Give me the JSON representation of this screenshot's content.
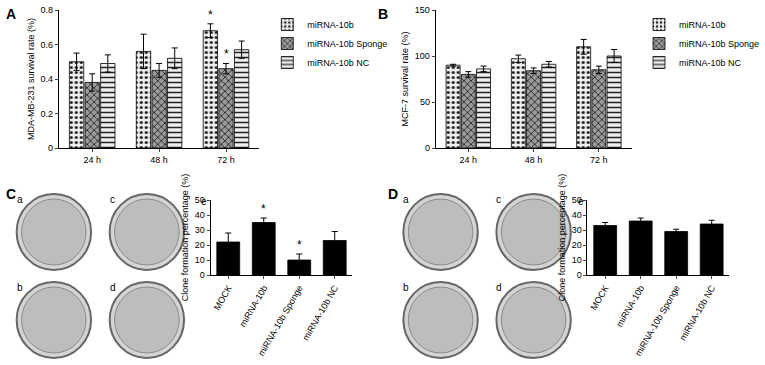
{
  "chart_data": [
    {
      "type": "bar",
      "title": "A",
      "ylabel": "MDA-MB-231 survival rate (%)",
      "categories": [
        "24 h",
        "48 h",
        "72 h"
      ],
      "series": [
        {
          "name": "miRNA-10b",
          "color": "#eeeeee",
          "marker": "dots",
          "values": [
            0.5,
            0.56,
            0.68
          ],
          "errors": [
            0.05,
            0.1,
            0.04
          ]
        },
        {
          "name": "miRNA-10b Sponge",
          "color": "#9a9a9a",
          "marker": "crosshatch",
          "values": [
            0.38,
            0.45,
            0.46
          ],
          "errors": [
            0.05,
            0.04,
            0.03
          ]
        },
        {
          "name": "miRNA-10b NC",
          "color": "#eeeeee",
          "marker": "hlines",
          "values": [
            0.49,
            0.52,
            0.57
          ],
          "errors": [
            0.05,
            0.06,
            0.05
          ]
        }
      ],
      "ylim": [
        0,
        0.8
      ],
      "yticks": [
        0,
        0.2,
        0.4,
        0.6,
        0.8
      ],
      "grid": false,
      "legend": "right",
      "annotations": [
        {
          "text": "*",
          "category": "72 h",
          "series": "miRNA-10b"
        },
        {
          "text": "*",
          "category": "72 h",
          "series": "miRNA-10b Sponge"
        }
      ]
    },
    {
      "type": "bar",
      "title": "B",
      "ylabel": "MCF-7 survival rate (%)",
      "categories": [
        "24 h",
        "48 h",
        "72 h"
      ],
      "series": [
        {
          "name": "miRNA-10b",
          "color": "#eeeeee",
          "marker": "dots",
          "values": [
            90,
            97,
            110
          ],
          "errors": [
            1,
            4,
            8
          ]
        },
        {
          "name": "miRNA-10b Sponge",
          "color": "#9a9a9a",
          "marker": "crosshatch",
          "values": [
            80,
            84,
            85
          ],
          "errors": [
            3,
            3,
            4
          ]
        },
        {
          "name": "miRNA-10b NC",
          "color": "#eeeeee",
          "marker": "hlines",
          "values": [
            86,
            91,
            100
          ],
          "errors": [
            3,
            3,
            7
          ]
        }
      ],
      "ylim": [
        0,
        150
      ],
      "yticks": [
        0,
        50,
        100,
        150
      ],
      "grid": false,
      "legend": "right"
    },
    {
      "type": "bar",
      "title": "C",
      "ylabel": "Clone formation percentage (%)",
      "categories": [
        "MOCK",
        "miRNA-10b",
        "miRNA-10b Sponge",
        "miRNA-10b NC"
      ],
      "values": [
        22,
        35,
        10,
        23
      ],
      "errors": [
        6,
        3,
        4,
        6
      ],
      "color": "#000000",
      "ylim": [
        0,
        50
      ],
      "yticks": [
        0,
        10,
        20,
        30,
        40,
        50
      ],
      "grid": false,
      "image_labels": [
        "a",
        "b",
        "c",
        "d"
      ],
      "annotations": [
        {
          "text": "e"
        },
        {
          "text": "*",
          "category": "miRNA-10b"
        },
        {
          "text": "*",
          "category": "miRNA-10b Sponge"
        }
      ]
    },
    {
      "type": "bar",
      "title": "D",
      "ylabel": "Clone formation percentage (%)",
      "categories": [
        "MOCK",
        "miRNA-10b",
        "miRNA-10b Sponge",
        "miRNA-10b NC"
      ],
      "values": [
        33,
        36,
        29,
        34
      ],
      "errors": [
        2,
        2,
        1.5,
        2.5
      ],
      "color": "#000000",
      "ylim": [
        0,
        50
      ],
      "yticks": [
        0,
        10,
        20,
        30,
        40,
        50
      ],
      "grid": false,
      "image_labels": [
        "a",
        "b",
        "c",
        "d"
      ],
      "annotations": [
        {
          "text": "e"
        }
      ]
    }
  ]
}
